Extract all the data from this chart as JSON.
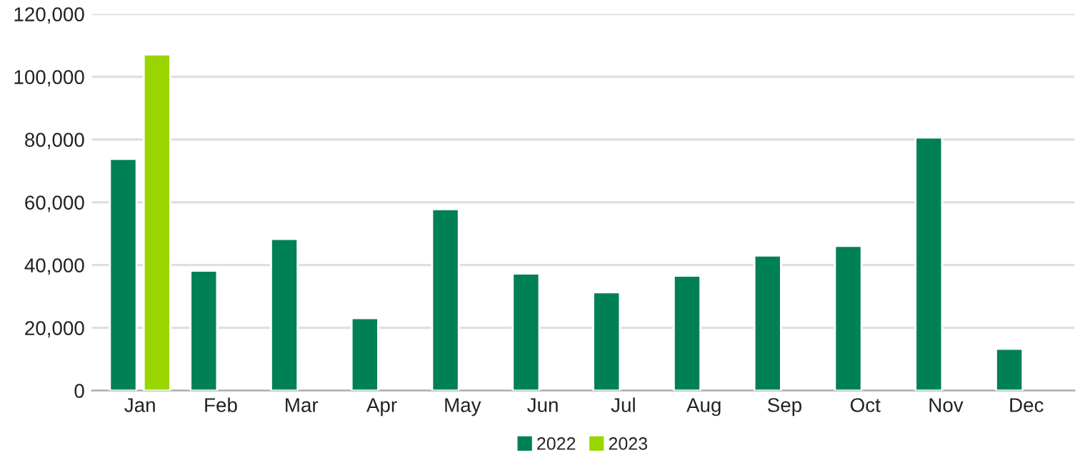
{
  "chart_data": {
    "type": "bar",
    "categories": [
      "Jan",
      "Feb",
      "Mar",
      "Apr",
      "May",
      "Jun",
      "Jul",
      "Aug",
      "Sep",
      "Oct",
      "Nov",
      "Dec"
    ],
    "series": [
      {
        "name": "2022",
        "color": "#008055",
        "values": [
          73800,
          38200,
          48300,
          23100,
          57800,
          37300,
          31300,
          36600,
          43000,
          46100,
          80600,
          13300
        ]
      },
      {
        "name": "2023",
        "color": "#99d600",
        "values": [
          107100,
          null,
          null,
          null,
          null,
          null,
          null,
          null,
          null,
          null,
          null,
          null
        ]
      }
    ],
    "ylim": [
      0,
      120000
    ],
    "yticks": [
      {
        "value": 0,
        "label": "0"
      },
      {
        "value": 20000,
        "label": "20,000"
      },
      {
        "value": 40000,
        "label": "40,000"
      },
      {
        "value": 60000,
        "label": "60,000"
      },
      {
        "value": 80000,
        "label": "80,000"
      },
      {
        "value": 100000,
        "label": "100,000"
      },
      {
        "value": 120000,
        "label": "120,000"
      }
    ],
    "grid": "y",
    "legend": "bottom"
  }
}
